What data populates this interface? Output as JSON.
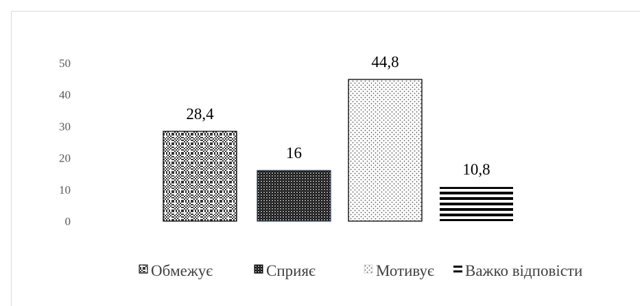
{
  "chart_data": {
    "type": "bar",
    "categories": [
      "Обмежує",
      "Сприяє",
      "Мотивує",
      "Важко відповісти"
    ],
    "values": [
      28.4,
      16,
      44.8,
      10.8
    ],
    "data_labels": [
      "28,4",
      "16",
      "44,8",
      "10,8"
    ],
    "y_ticks": [
      "0",
      "10",
      "20",
      "30",
      "40",
      "50"
    ],
    "ylim": [
      0,
      50
    ],
    "grid": false,
    "legend_position": "bottom",
    "patterns": [
      "checker-dots",
      "dense-dots",
      "light-dots",
      "horizontal-stripes"
    ]
  }
}
